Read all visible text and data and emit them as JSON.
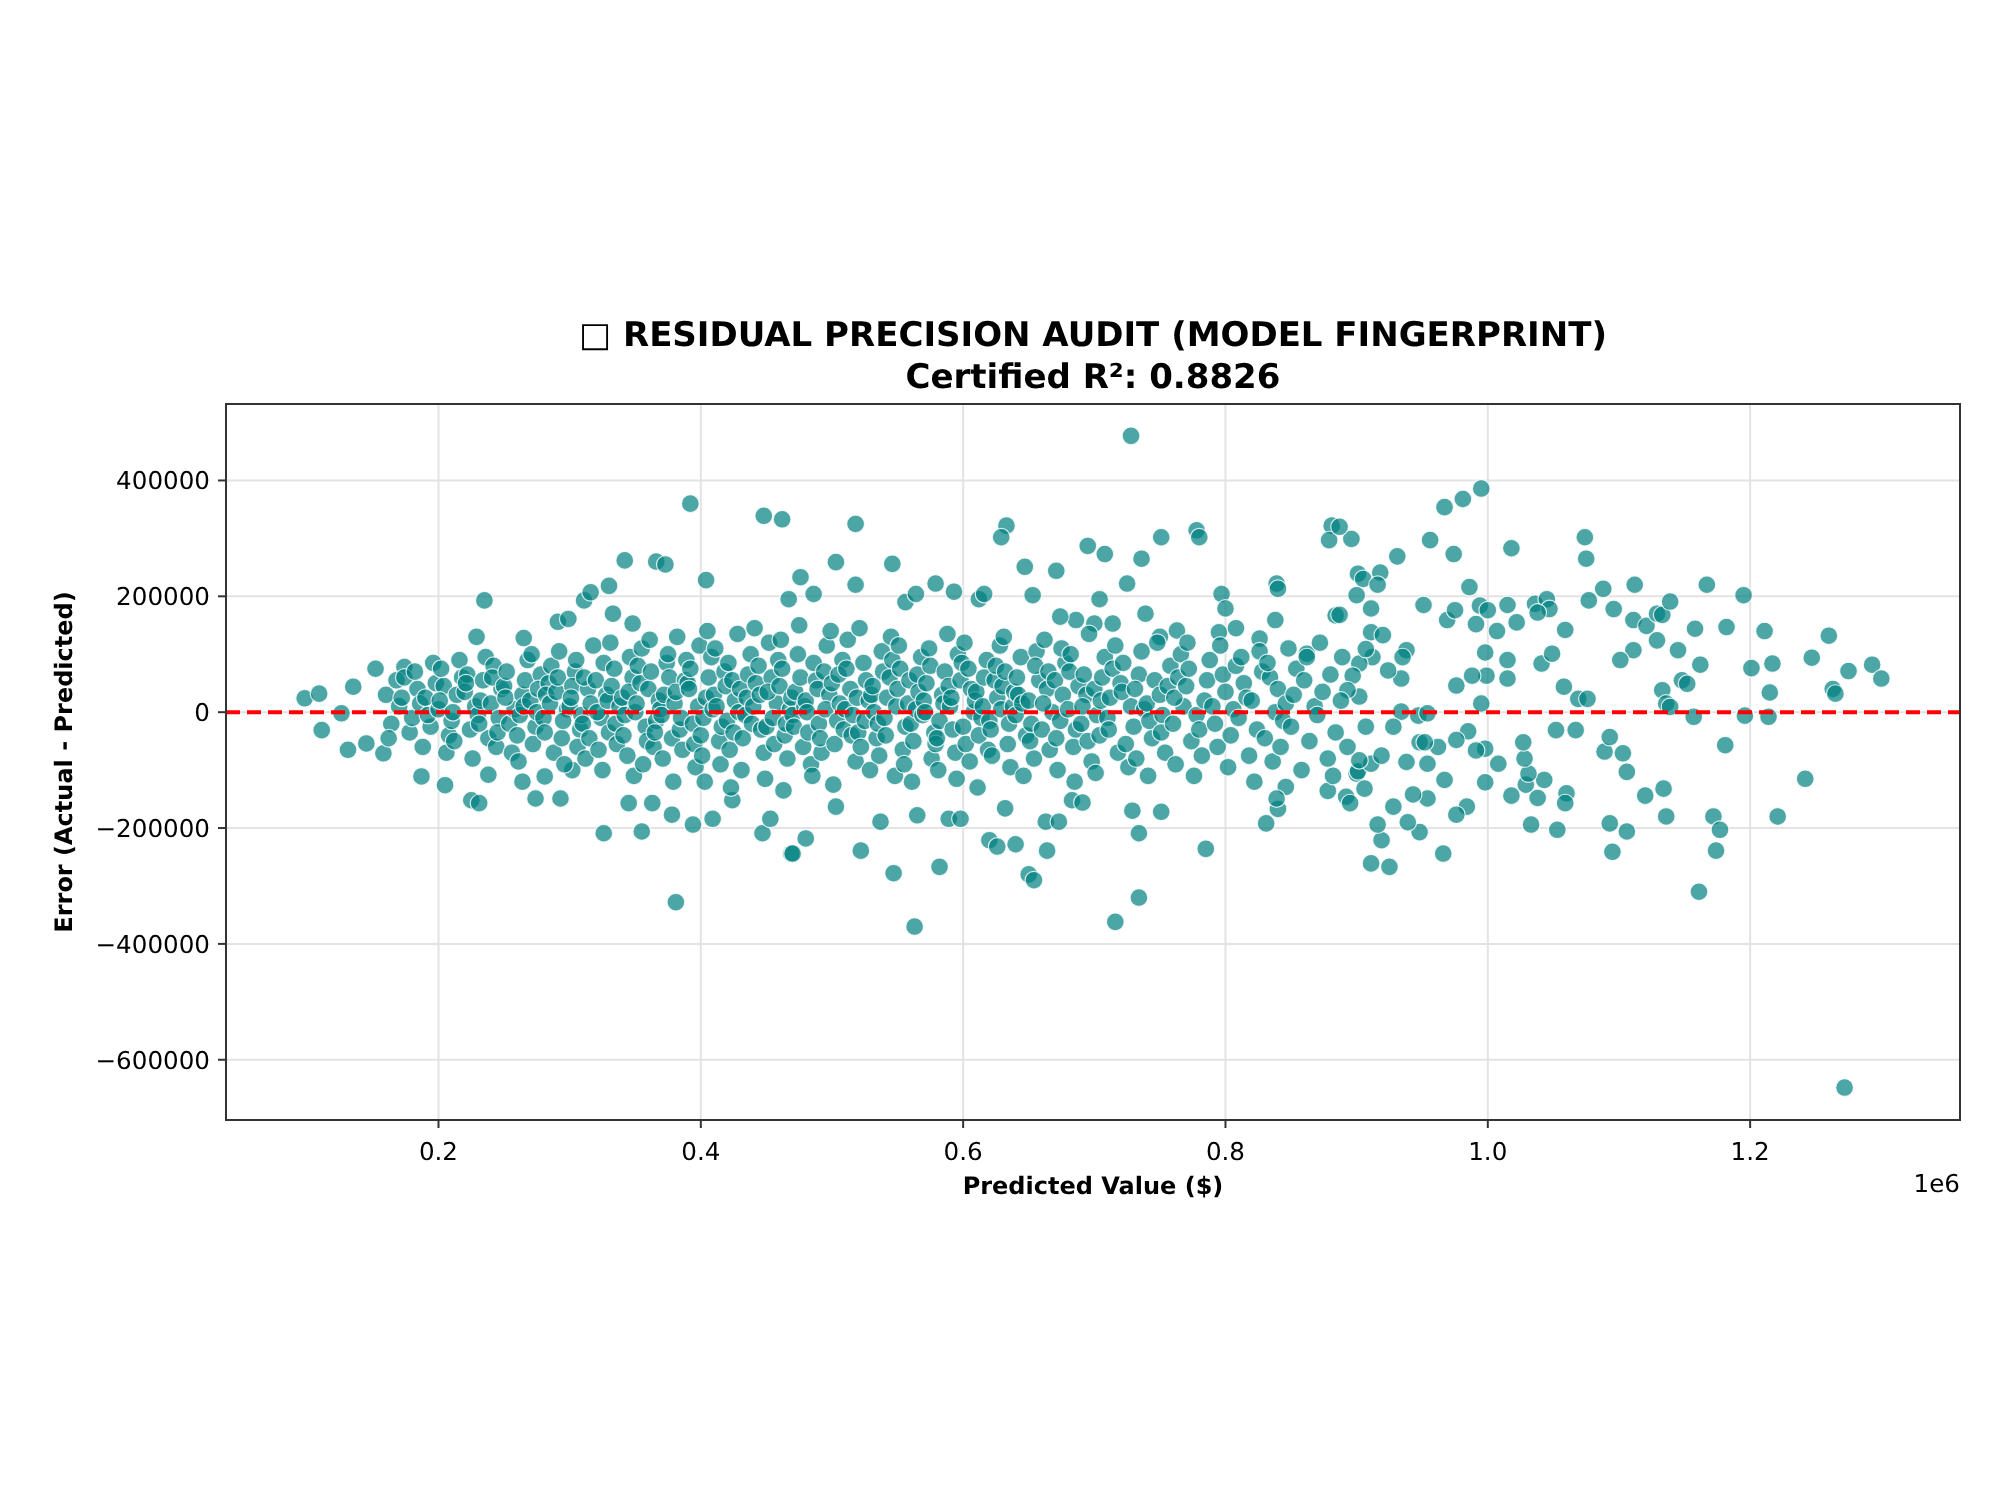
{
  "chart_data": {
    "type": "scatter",
    "title": "□ RESIDUAL PRECISION AUDIT (MODEL FINGERPRINT)",
    "subtitle": "Certified R²: 0.8826",
    "xlabel": "Predicted Value ($)",
    "ylabel": "Error (Actual - Predicted)",
    "annotations": [
      "1e6"
    ],
    "color": "#008080",
    "marker": "circle",
    "grid": true,
    "xlim": [
      0.038,
      1.36
    ],
    "ylim": [
      -704000,
      532000
    ],
    "xticks": [
      0.2,
      0.4,
      0.6,
      0.8,
      {
        "value": 1,
        "label": "1.0"
      },
      1.2
    ],
    "yticks": [
      -600000,
      -400000,
      -200000,
      0,
      200000,
      400000
    ],
    "ref_lines": [
      {
        "axis": "y",
        "value": 0,
        "color": "#ff0000",
        "line_style": "dashed"
      }
    ],
    "x": [
      0.098,
      0.109,
      0.111,
      0.126,
      0.135,
      0.131,
      0.152,
      0.145,
      0.158,
      0.174,
      0.187,
      0.205,
      0.225,
      0.231,
      0.235,
      0.229,
      0.238,
      0.264,
      0.274,
      0.281,
      0.293,
      0.265,
      0.291,
      0.299,
      0.311,
      0.316,
      0.33,
      0.342,
      0.366,
      0.373,
      0.392,
      0.448,
      0.462,
      0.404,
      0.333,
      0.348,
      0.326,
      0.355,
      0.381,
      0.394,
      0.378,
      0.345,
      0.363,
      0.409,
      0.424,
      0.447,
      0.453,
      0.469,
      0.302,
      0.518,
      0.503,
      0.546,
      0.476,
      0.518,
      0.467,
      0.486,
      0.579,
      0.556,
      0.564,
      0.593,
      0.633,
      0.629,
      0.647,
      0.671,
      0.695,
      0.708,
      0.728,
      0.736,
      0.725,
      0.751,
      0.778,
      0.78,
      0.797,
      0.8,
      0.839,
      0.84,
      0.881,
      0.879,
      0.896,
      0.884,
      0.653,
      0.612,
      0.862,
      0.826,
      0.838,
      0.795,
      0.808,
      0.763,
      0.75,
      0.739,
      0.704,
      0.7,
      0.714,
      0.686,
      0.674,
      0.616,
      0.47,
      0.48,
      0.522,
      0.537,
      0.503,
      0.547,
      0.563,
      0.565,
      0.582,
      0.589,
      0.598,
      0.62,
      0.626,
      0.64,
      0.65,
      0.654,
      0.663,
      0.664,
      0.673,
      0.716,
      0.734,
      0.734,
      0.729,
      0.751,
      0.785,
      0.831,
      0.84,
      0.878,
      0.892,
      0.9,
      0.683,
      0.691,
      0.632,
      0.846,
      0.839,
      0.895,
      0.995,
      0.981,
      0.967,
      0.956,
      0.974,
      0.931,
      1.018,
      1.074,
      1.075,
      0.986,
      0.951,
      0.969,
      0.975,
      0.994,
      1.0,
      1.015,
      1.007,
      0.991,
      1.022,
      1.036,
      1.045,
      1.047,
      1.038,
      1.059,
      1.077,
      1.088,
      1.096,
      1.112,
      1.111,
      1.121,
      1.129,
      1.133,
      1.139,
      1.158,
      1.167,
      1.182,
      1.195,
      1.211,
      1.26,
      1.247,
      1.217,
      1.201,
      1.215,
      1.196,
      1.214,
      1.263,
      1.265,
      1.275,
      1.293,
      1.3,
      1.162,
      1.148,
      1.152,
      1.133,
      1.136,
      1.139,
      1.157,
      1.145,
      1.129,
      1.111,
      1.101,
      1.069,
      1.076,
      1.058,
      1.041,
      1.049,
      1.015,
      1.015,
      0.998,
      0.999,
      0.988,
      0.995,
      0.976,
      1.181,
      1.242,
      1.221,
      1.172,
      1.177,
      1.174,
      1.161,
      1.136,
      1.134,
      1.12,
      1.106,
      1.103,
      1.089,
      1.093,
      1.093,
      1.106,
      1.095,
      1.067,
      1.052,
      1.06,
      1.059,
      1.053,
      1.043,
      1.038,
      1.033,
      1.029,
      1.031,
      1.028,
      1.027,
      1.018,
      1.008,
      0.998,
      0.998,
      0.991,
      0.985,
      0.976,
      0.984,
      0.976,
      0.966,
      0.967,
      0.962,
      0.954,
      0.948,
      0.954,
      0.948,
      0.939,
      0.928,
      0.925,
      0.911,
      0.919,
      0.916,
      0.943,
      0.906,
      0.901,
      0.911,
      0.902,
      0.893,
      0.938,
      0.952,
      0.907,
      0.919,
      0.934,
      0.928,
      0.947,
      0.954,
      0.938,
      0.935,
      0.934,
      0.924,
      0.912,
      0.911,
      0.92,
      0.902,
      0.907,
      0.889,
      0.902,
      0.897,
      0.893,
      0.901,
      0.905,
      0.918,
      0.916,
      0.9,
      0.911,
      0.887,
      0.887,
      1.272,
      0.16,
      0.164,
      0.168,
      0.162,
      0.17,
      0.174,
      0.178,
      0.172,
      0.18,
      0.184,
      0.188,
      0.182,
      0.186,
      0.19,
      0.194,
      0.198,
      0.192,
      0.196,
      0.2,
      0.204,
      0.208,
      0.202,
      0.206,
      0.201,
      0.21,
      0.214,
      0.218,
      0.212,
      0.216,
      0.211,
      0.22,
      0.224,
      0.228,
      0.222,
      0.226,
      0.221,
      0.23,
      0.234,
      0.238,
      0.232,
      0.236,
      0.231,
      0.24,
      0.244,
      0.248,
      0.242,
      0.246,
      0.241,
      0.245,
      0.25,
      0.254,
      0.258,
      0.252,
      0.256,
      0.251,
      0.26,
      0.264,
      0.268,
      0.262,
      0.266,
      0.261,
      0.265,
      0.27,
      0.274,
      0.278,
      0.272,
      0.276,
      0.271,
      0.275,
      0.28,
      0.284,
      0.288,
      0.282,
      0.286,
      0.281,
      0.285,
      0.29,
      0.294,
      0.298,
      0.292,
      0.296,
      0.291,
      0.295,
      0.3,
      0.304,
      0.308,
      0.302,
      0.306,
      0.301,
      0.305,
      0.309,
      0.31,
      0.314,
      0.318,
      0.312,
      0.316,
      0.311,
      0.315,
      0.32,
      0.324,
      0.328,
      0.322,
      0.326,
      0.321,
      0.325,
      0.329,
      0.33,
      0.334,
      0.338,
      0.332,
      0.336,
      0.331,
      0.335,
      0.34,
      0.344,
      0.348,
      0.342,
      0.346,
      0.341,
      0.345,
      0.349,
      0.35,
      0.354,
      0.358,
      0.352,
      0.356,
      0.351,
      0.355,
      0.359,
      0.36,
      0.364,
      0.368,
      0.362,
      0.366,
      0.361,
      0.365,
      0.369,
      0.37,
      0.374,
      0.378,
      0.372,
      0.376,
      0.371,
      0.375,
      0.379,
      0.38,
      0.384,
      0.388,
      0.382,
      0.386,
      0.381,
      0.385,
      0.389,
      0.39,
      0.394,
      0.398,
      0.392,
      0.396,
      0.391,
      0.395,
      0.399,
      0.4,
      0.404,
      0.408,
      0.402,
      0.406,
      0.401,
      0.405,
      0.409,
      0.403,
      0.41,
      0.414,
      0.418,
      0.412,
      0.416,
      0.411,
      0.415,
      0.419,
      0.42,
      0.424,
      0.428,
      0.422,
      0.426,
      0.421,
      0.425,
      0.429,
      0.423,
      0.43,
      0.434,
      0.438,
      0.432,
      0.436,
      0.431,
      0.435,
      0.439,
      0.44,
      0.444,
      0.448,
      0.442,
      0.446,
      0.441,
      0.445,
      0.449,
      0.45,
      0.454,
      0.458,
      0.452,
      0.456,
      0.451,
      0.455,
      0.459,
      0.46,
      0.464,
      0.468,
      0.462,
      0.466,
      0.461,
      0.465,
      0.469,
      0.463,
      0.47,
      0.474,
      0.478,
      0.472,
      0.476,
      0.471,
      0.475,
      0.479,
      0.48,
      0.484,
      0.488,
      0.482,
      0.486,
      0.481,
      0.485,
      0.489,
      0.49,
      0.494,
      0.498,
      0.492,
      0.496,
      0.491,
      0.495,
      0.499,
      0.5,
      0.504,
      0.508,
      0.502,
      0.506,
      0.501,
      0.505,
      0.509,
      0.51,
      0.514,
      0.518,
      0.512,
      0.516,
      0.511,
      0.515,
      0.519,
      0.52,
      0.524,
      0.528,
      0.522,
      0.526,
      0.521,
      0.525,
      0.529,
      0.53,
      0.534,
      0.538,
      0.532,
      0.536,
      0.531,
      0.535,
      0.539,
      0.54,
      0.544,
      0.548,
      0.542,
      0.546,
      0.541,
      0.545,
      0.549,
      0.55,
      0.554,
      0.558,
      0.552,
      0.556,
      0.551,
      0.555,
      0.559,
      0.56,
      0.564,
      0.568,
      0.562,
      0.566,
      0.561,
      0.565,
      0.569,
      0.57,
      0.574,
      0.578,
      0.572,
      0.576,
      0.571,
      0.575,
      0.579,
      0.58,
      0.584,
      0.588,
      0.582,
      0.586,
      0.581,
      0.585,
      0.589,
      0.59,
      0.594,
      0.598,
      0.592,
      0.596,
      0.591,
      0.595,
      0.599,
      0.6,
      0.604,
      0.608,
      0.602,
      0.606,
      0.601,
      0.605,
      0.609,
      0.61,
      0.614,
      0.618,
      0.612,
      0.616,
      0.611,
      0.615,
      0.619,
      0.62,
      0.624,
      0.628,
      0.622,
      0.626,
      0.621,
      0.625,
      0.629,
      0.63,
      0.634,
      0.638,
      0.632,
      0.636,
      0.631,
      0.635,
      0.639,
      0.64,
      0.644,
      0.648,
      0.642,
      0.646,
      0.641,
      0.645,
      0.65,
      0.654,
      0.658,
      0.652,
      0.656,
      0.651,
      0.655,
      0.66,
      0.664,
      0.668,
      0.662,
      0.666,
      0.661,
      0.665,
      0.67,
      0.674,
      0.678,
      0.672,
      0.676,
      0.671,
      0.675,
      0.68,
      0.684,
      0.688,
      0.682,
      0.686,
      0.681,
      0.685,
      0.69,
      0.694,
      0.698,
      0.692,
      0.696,
      0.691,
      0.695,
      0.7,
      0.704,
      0.708,
      0.702,
      0.706,
      0.701,
      0.705,
      0.71,
      0.714,
      0.718,
      0.712,
      0.716,
      0.711,
      0.72,
      0.724,
      0.728,
      0.722,
      0.726,
      0.721,
      0.73,
      0.734,
      0.738,
      0.732,
      0.736,
      0.731,
      0.74,
      0.744,
      0.748,
      0.742,
      0.746,
      0.741,
      0.75,
      0.754,
      0.758,
      0.752,
      0.756,
      0.751,
      0.76,
      0.764,
      0.768,
      0.762,
      0.766,
      0.761,
      0.77,
      0.774,
      0.778,
      0.772,
      0.776,
      0.771,
      0.78,
      0.784,
      0.788,
      0.782,
      0.786,
      0.79,
      0.794,
      0.798,
      0.792,
      0.796,
      0.8,
      0.804,
      0.808,
      0.802,
      0.806,
      0.81,
      0.814,
      0.818,
      0.812,
      0.816,
      0.82,
      0.824,
      0.828,
      0.822,
      0.826,
      0.83,
      0.834,
      0.838,
      0.832,
      0.836,
      0.84,
      0.844,
      0.848,
      0.842,
      0.846,
      0.85,
      0.854,
      0.858,
      0.852,
      0.86,
      0.864,
      0.868,
      0.862,
      0.87,
      0.874,
      0.878,
      0.872,
      0.88,
      0.884,
      0.888,
      0.882
    ],
    "values": [
      24000,
      32000,
      -31000,
      -2000,
      44000,
      -65000,
      75000,
      -54000,
      -71000,
      78000,
      -111000,
      -126000,
      -152000,
      -157000,
      193000,
      130000,
      -108000,
      -120000,
      -149000,
      -111000,
      -149000,
      128000,
      156000,
      161000,
      193000,
      207000,
      218000,
      262000,
      260000,
      255000,
      360000,
      339000,
      333000,
      228000,
      170000,
      153000,
      -209000,
      -206000,
      -328000,
      -194000,
      -177000,
      -157000,
      -157000,
      -184000,
      -152000,
      -209000,
      -184000,
      -244000,
      -100000,
      325000,
      259000,
      256000,
      233000,
      220000,
      195000,
      204000,
      222000,
      190000,
      204000,
      208000,
      322000,
      302000,
      251000,
      244000,
      287000,
      273000,
      477000,
      265000,
      222000,
      302000,
      314000,
      302000,
      204000,
      179000,
      222000,
      213000,
      322000,
      297000,
      299000,
      167000,
      202000,
      195000,
      101000,
      127000,
      159000,
      138000,
      145000,
      141000,
      130000,
      170000,
      195000,
      153000,
      153000,
      159000,
      165000,
      204000,
      -244000,
      -218000,
      -239000,
      -189000,
      -163000,
      -278000,
      -370000,
      -178000,
      -267000,
      -184000,
      -184000,
      -221000,
      -232000,
      -228000,
      -280000,
      -290000,
      -189000,
      -239000,
      -189000,
      -362000,
      -320000,
      -209000,
      -170000,
      -172000,
      -236000,
      -192000,
      -167000,
      -136000,
      -146000,
      -106000,
      -152000,
      -156000,
      -166000,
      -129000,
      -149000,
      -157000,
      386000,
      368000,
      354000,
      297000,
      273000,
      269000,
      283000,
      302000,
      265000,
      216000,
      185000,
      159000,
      176000,
      184000,
      176000,
      185000,
      140000,
      152000,
      155000,
      187000,
      195000,
      178000,
      172000,
      142000,
      193000,
      213000,
      178000,
      220000,
      159000,
      149000,
      170000,
      168000,
      191000,
      144000,
      220000,
      147000,
      202000,
      140000,
      132000,
      94000,
      84000,
      76000,
      34000,
      -6000,
      -8000,
      40000,
      32000,
      71000,
      82000,
      58000,
      82000,
      55000,
      49000,
      38000,
      15000,
      9000,
      -8000,
      107000,
      124000,
      107000,
      90000,
      23000,
      23000,
      44000,
      84000,
      101000,
      90000,
      58000,
      103000,
      63000,
      63000,
      15000,
      46000,
      -57000,
      -115000,
      -180000,
      -180000,
      -203000,
      -239000,
      -310000,
      -180000,
      -132000,
      -144000,
      -103000,
      -71000,
      -68000,
      -43000,
      -192000,
      -206000,
      -241000,
      -31000,
      -31000,
      -140000,
      -157000,
      -203000,
      -117000,
      -148000,
      -194000,
      -125000,
      -106000,
      -80000,
      -52000,
      -144000,
      -89000,
      -121000,
      -63000,
      -66000,
      -33000,
      -48000,
      -163000,
      -177000,
      -244000,
      -117000,
      -60000,
      -89000,
      -52000,
      -149000,
      -207000,
      -190000,
      -163000,
      -267000,
      -261000,
      -221000,
      -194000,
      -142000,
      -132000,
      -102000,
      -89000,
      -83000,
      -60000,
      -86000,
      -52000,
      -25000,
      -75000,
      1000,
      -25000,
      -6000,
      -2000,
      107000,
      95000,
      58000,
      72000,
      95000,
      138000,
      133000,
      84000,
      109000,
      95000,
      27000,
      63000,
      38000,
      239000,
      230000,
      241000,
      220000,
      202000,
      179000,
      168000,
      320000,
      -648000,
      30000,
      -20000,
      55000,
      -45000,
      10000,
      60000,
      -35000,
      25000,
      -10000,
      40000,
      -60000,
      70000,
      15000,
      25000,
      -25000,
      50000,
      -5000,
      85000,
      5000,
      45000,
      -40000,
      75000,
      -70000,
      20000,
      -15000,
      30000,
      60000,
      -50000,
      90000,
      0,
      35000,
      -30000,
      10000,
      65000,
      -80000,
      50000,
      -5000,
      55000,
      -45000,
      20000,
      95000,
      -20000,
      15000,
      -60000,
      40000,
      80000,
      -10000,
      60000,
      -35000,
      45000,
      -20000,
      5000,
      70000,
      -70000,
      25000,
      -40000,
      30000,
      90000,
      -5000,
      55000,
      -85000,
      10000,
      20000,
      -25000,
      65000,
      -55000,
      40000,
      100000,
      0,
      -10000,
      50000,
      -70000,
      30000,
      80000,
      -35000,
      15000,
      35000,
      -45000,
      5000,
      105000,
      -90000,
      60000,
      -15000,
      10000,
      70000,
      -30000,
      45000,
      -60000,
      25000,
      90000,
      -5000,
      -20000,
      40000,
      115000,
      -80000,
      15000,
      60000,
      -45000,
      55000,
      -10000,
      30000,
      -65000,
      85000,
      0,
      -100000,
      20000,
      -35000,
      75000,
      10000,
      45000,
      -55000,
      120000,
      -20000,
      25000,
      -75000,
      60000,
      -5000,
      95000,
      -40000,
      35000,
      -110000,
      0,
      50000,
      -25000,
      80000,
      -90000,
      15000,
      110000,
      -50000,
      40000,
      -60000,
      20000,
      70000,
      -15000,
      125000,
      -35000,
      5000,
      -5000,
      85000,
      -45000,
      30000,
      60000,
      -80000,
      100000,
      -120000,
      15000,
      -30000,
      55000,
      130000,
      -65000,
      35000,
      -10000,
      90000,
      50000,
      -20000,
      10000,
      75000,
      -95000,
      40000,
      -55000,
      115000,
      -40000,
      25000,
      95000,
      -10000,
      60000,
      -75000,
      140000,
      5000,
      -120000,
      30000,
      -50000,
      70000,
      10000,
      -25000,
      110000,
      -90000,
      45000,
      -15000,
      55000,
      135000,
      -65000,
      20000,
      85000,
      -35000,
      0,
      -130000,
      40000,
      -5000,
      100000,
      -45000,
      65000,
      -100000,
      25000,
      -20000,
      10000,
      80000,
      -70000,
      50000,
      -30000,
      145000,
      30000,
      -115000,
      -25000,
      60000,
      15000,
      120000,
      -55000,
      35000,
      -10000,
      90000,
      45000,
      -40000,
      5000,
      75000,
      -80000,
      125000,
      -20000,
      25000,
      -135000,
      -5000,
      100000,
      -60000,
      35000,
      60000,
      -25000,
      150000,
      10000,
      20000,
      -90000,
      55000,
      -35000,
      85000,
      0,
      -110000,
      40000,
      -20000,
      70000,
      30000,
      -70000,
      115000,
      -45000,
      5000,
      140000,
      50000,
      -15000,
      90000,
      -55000,
      15000,
      -125000,
      65000,
      -30000,
      5000,
      40000,
      -85000,
      125000,
      -5000,
      75000,
      -40000,
      25000,
      -35000,
      85000,
      20000,
      -60000,
      55000,
      145000,
      -15000,
      -100000,
      30000,
      -45000,
      105000,
      0,
      -75000,
      45000,
      -20000,
      70000,
      -10000,
      60000,
      -110000,
      25000,
      90000,
      -40000,
      130000,
      10000,
      40000,
      -65000,
      15000,
      75000,
      -25000,
      115000,
      -90000,
      55000,
      -20000,
      5000,
      95000,
      -50000,
      35000,
      -120000,
      65000,
      -5000,
      20000,
      110000,
      -35000,
      50000,
      -80000,
      0,
      80000,
      -55000,
      -45000,
      30000,
      135000,
      -15000,
      70000,
      -100000,
      15000,
      45000,
      10000,
      -70000,
      55000,
      -30000,
      100000,
      25000,
      -115000,
      85000,
      -25000,
      75000,
      0,
      -55000,
      40000,
      120000,
      -85000,
      20000,
      35000,
      -10000,
      90000,
      -40000,
      60000,
      -130000,
      10000,
      -65000,
      -15000,
      55000,
      115000,
      -75000,
      25000,
      -30000,
      80000,
      5000,
      45000,
      -55000,
      10000,
      70000,
      -95000,
      130000,
      -20000,
      35000,
      -5000,
      95000,
      -40000,
      30000,
      -110000,
      60000,
      15000,
      20000,
      -80000,
      55000,
      -20000,
      105000,
      -50000,
      80000,
      -30000,
      40000,
      0,
      125000,
      -65000,
      15000,
      70000,
      55000,
      -15000,
      85000,
      -100000,
      30000,
      -45000,
      110000,
      5000,
      -60000,
      45000,
      100000,
      -30000,
      70000,
      -120000,
      -20000,
      30000,
      -85000,
      65000,
      135000,
      10000,
      -50000,
      40000,
      -40000,
      95000,
      -5000,
      60000,
      -105000,
      20000,
      -10000,
      75000,
      -70000,
      25000,
      115000,
      -30000,
      50000,
      -55000,
      10000,
      85000,
      -95000,
      35000,
      -25000,
      65000,
      5000,
      -80000,
      105000,
      40000,
      15000,
      -45000,
      120000,
      -15000,
      55000,
      -110000,
      30000,
      -70000,
      80000,
      -5000,
      45000,
      -35000,
      -20000,
      60000,
      10000,
      -90000,
      100000,
      25000,
      45000,
      -50000,
      -5000,
      75000,
      -110000,
      120000,
      -30000,
      20000,
      90000,
      -75000,
      55000,
      10000,
      -60000,
      65000,
      -20000,
      115000,
      35000,
      -40000,
      80000,
      -95000,
      5000,
      -10000,
      50000,
      -75000,
      95000,
      25000,
      20000,
      -30000,
      70000,
      -120000,
      105000,
      -45000,
      60000,
      0,
      85000,
      -85000,
      40000,
      -15000,
      110000,
      -60000,
      15000,
      -25000,
      75000,
      -100000,
      30000,
      55000,
      -50000,
      10000,
      95000,
      -5000,
      35000,
      -80000,
      120000,
      65000,
      -35000,
      20000,
      -110000
    ]
  }
}
